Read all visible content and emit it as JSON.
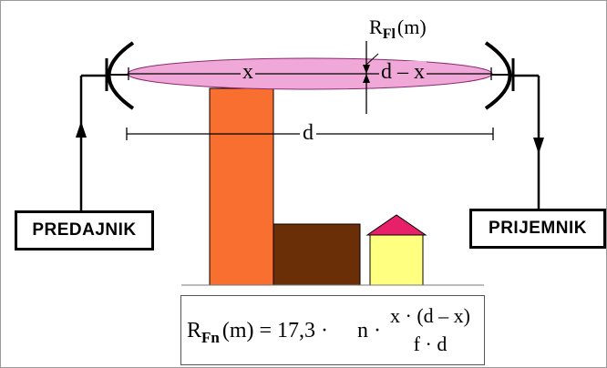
{
  "labels": {
    "x": "x",
    "d_minus_x": "d – x",
    "d": "d",
    "r_fl_main": "R",
    "r_fl_sub": "Fl",
    "r_fl_unit": "(m)"
  },
  "transmitter": {
    "label": "PREDAJNIK"
  },
  "receiver": {
    "label": "PRIJEMNIK"
  },
  "formula": {
    "r_main": "R",
    "r_sub": "Fn",
    "r_unit": "(m) = 17,3 ·",
    "n_part": "n ·",
    "numerator": "x · (d – x)",
    "denominator": "f · d"
  },
  "colors": {
    "ellipse_fill": "#f0a8d8",
    "tall_building": "#f86f30",
    "low_building": "#6b2f08",
    "house_wall": "#ffff80",
    "house_roof": "#e8206a"
  }
}
